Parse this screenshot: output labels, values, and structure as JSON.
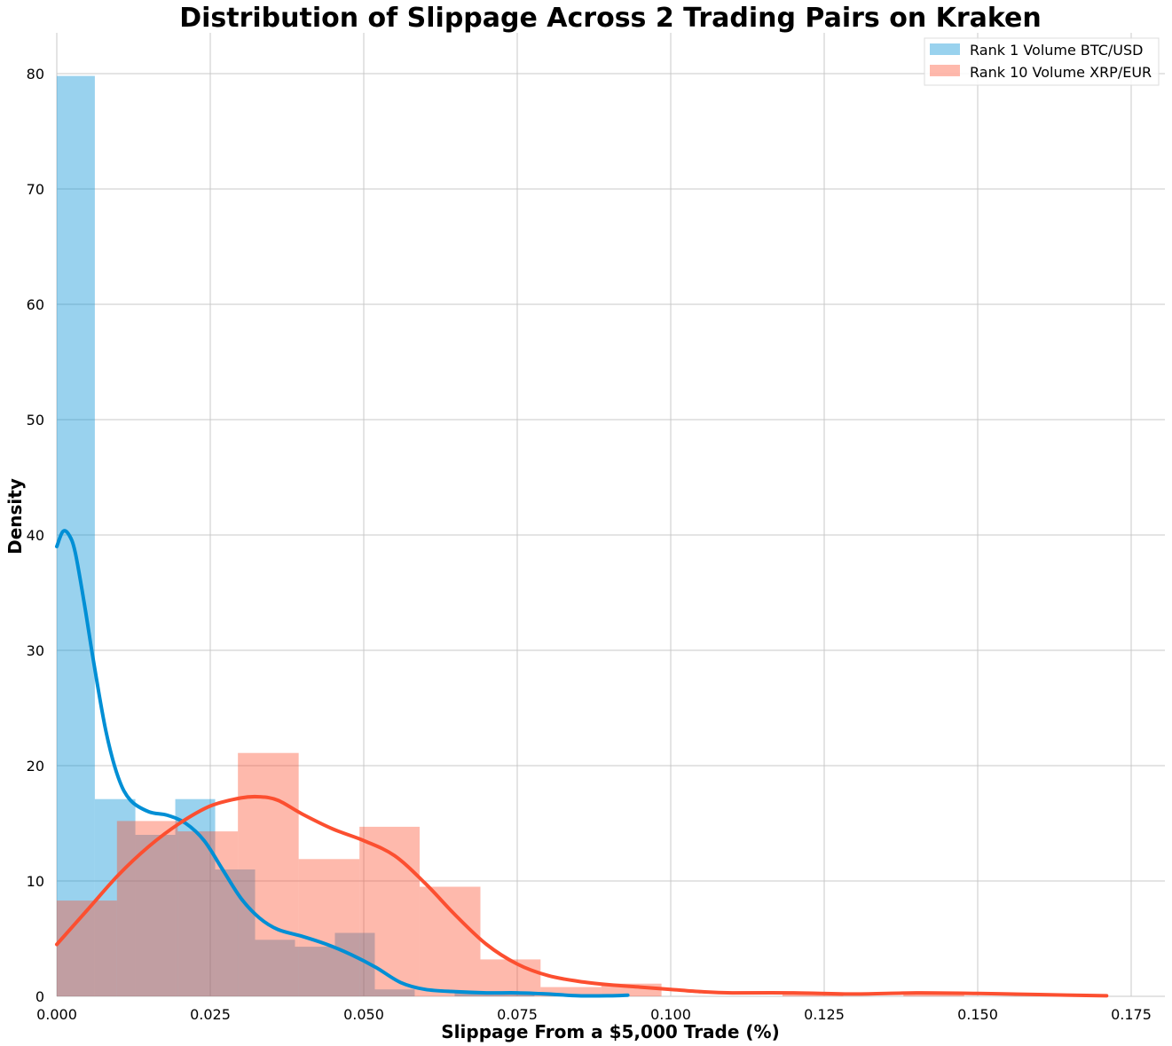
{
  "chart_data": {
    "type": "histogram",
    "title": "Distribution of Slippage Across 2 Trading Pairs on Kraken",
    "xlabel": "Slippage From a $5,000 Trade (%)",
    "ylabel": "Density",
    "xlim": [
      0,
      0.18
    ],
    "ylim": [
      0,
      83
    ],
    "xticks": [
      0.0,
      0.025,
      0.05,
      0.075,
      0.1,
      0.125,
      0.15,
      0.175
    ],
    "xtick_labels": [
      "0.000",
      "0.025",
      "0.050",
      "0.075",
      "0.100",
      "0.125",
      "0.150",
      "0.175"
    ],
    "yticks": [
      0,
      10,
      20,
      30,
      40,
      50,
      60,
      70,
      80
    ],
    "ytick_labels": [
      "0",
      "10",
      "20",
      "30",
      "40",
      "50",
      "60",
      "70",
      "80"
    ],
    "grid": true,
    "legend_position": "top-right",
    "series": [
      {
        "name": "Rank 1 Volume BTC/USD",
        "color": "#008fd5",
        "hist_alpha": 0.4,
        "bins": [
          {
            "x0": 0.0,
            "x1": 0.0062,
            "density": 79.8
          },
          {
            "x0": 0.0062,
            "x1": 0.0128,
            "density": 17.1
          },
          {
            "x0": 0.0128,
            "x1": 0.0193,
            "density": 14.0
          },
          {
            "x0": 0.0193,
            "x1": 0.0258,
            "density": 17.1
          },
          {
            "x0": 0.0258,
            "x1": 0.0323,
            "density": 11.0
          },
          {
            "x0": 0.0323,
            "x1": 0.0388,
            "density": 4.9
          },
          {
            "x0": 0.0388,
            "x1": 0.0453,
            "density": 4.3
          },
          {
            "x0": 0.0453,
            "x1": 0.0518,
            "density": 5.5
          },
          {
            "x0": 0.0518,
            "x1": 0.0583,
            "density": 0.6
          },
          {
            "x0": 0.0583,
            "x1": 0.0648,
            "density": 0.0
          },
          {
            "x0": 0.0648,
            "x1": 0.0713,
            "density": 0.3
          },
          {
            "x0": 0.0713,
            "x1": 0.0778,
            "density": 0.3
          }
        ],
        "kde": [
          [
            0.0,
            39.0
          ],
          [
            0.001,
            40.3
          ],
          [
            0.002,
            40.0
          ],
          [
            0.003,
            38.5
          ],
          [
            0.0045,
            34.0
          ],
          [
            0.006,
            29.0
          ],
          [
            0.008,
            23.0
          ],
          [
            0.01,
            19.0
          ],
          [
            0.012,
            17.0
          ],
          [
            0.015,
            16.0
          ],
          [
            0.018,
            15.7
          ],
          [
            0.021,
            15.0
          ],
          [
            0.024,
            13.5
          ],
          [
            0.027,
            11.0
          ],
          [
            0.03,
            8.5
          ],
          [
            0.033,
            6.8
          ],
          [
            0.036,
            5.8
          ],
          [
            0.04,
            5.2
          ],
          [
            0.044,
            4.5
          ],
          [
            0.048,
            3.6
          ],
          [
            0.052,
            2.5
          ],
          [
            0.056,
            1.2
          ],
          [
            0.06,
            0.6
          ],
          [
            0.065,
            0.4
          ],
          [
            0.07,
            0.3
          ],
          [
            0.075,
            0.3
          ],
          [
            0.08,
            0.2
          ],
          [
            0.085,
            0.05
          ],
          [
            0.09,
            0.05
          ],
          [
            0.093,
            0.1
          ]
        ]
      },
      {
        "name": "Rank 10 Volume XRP/EUR",
        "color": "#fc4f30",
        "hist_alpha": 0.4,
        "bins": [
          {
            "x0": 0.0,
            "x1": 0.0098,
            "density": 8.3
          },
          {
            "x0": 0.0098,
            "x1": 0.0197,
            "density": 15.2
          },
          {
            "x0": 0.0197,
            "x1": 0.0295,
            "density": 14.3
          },
          {
            "x0": 0.0295,
            "x1": 0.0394,
            "density": 21.1
          },
          {
            "x0": 0.0394,
            "x1": 0.0493,
            "density": 11.9
          },
          {
            "x0": 0.0493,
            "x1": 0.0591,
            "density": 14.7
          },
          {
            "x0": 0.0591,
            "x1": 0.069,
            "density": 9.5
          },
          {
            "x0": 0.069,
            "x1": 0.0788,
            "density": 3.2
          },
          {
            "x0": 0.0788,
            "x1": 0.0887,
            "density": 0.8
          },
          {
            "x0": 0.0887,
            "x1": 0.0985,
            "density": 1.1
          },
          {
            "x0": 0.0985,
            "x1": 0.1084,
            "density": 0.0
          },
          {
            "x0": 0.1084,
            "x1": 0.1182,
            "density": 0.0
          },
          {
            "x0": 0.1182,
            "x1": 0.1281,
            "density": 0.3
          },
          {
            "x0": 0.1281,
            "x1": 0.1379,
            "density": 0.0
          },
          {
            "x0": 0.1379,
            "x1": 0.1478,
            "density": 0.3
          }
        ],
        "kde": [
          [
            0.0,
            4.5
          ],
          [
            0.005,
            7.5
          ],
          [
            0.01,
            10.5
          ],
          [
            0.015,
            13.0
          ],
          [
            0.02,
            15.0
          ],
          [
            0.025,
            16.5
          ],
          [
            0.03,
            17.2
          ],
          [
            0.033,
            17.3
          ],
          [
            0.036,
            17.0
          ],
          [
            0.04,
            15.8
          ],
          [
            0.045,
            14.5
          ],
          [
            0.05,
            13.5
          ],
          [
            0.055,
            12.2
          ],
          [
            0.06,
            9.8
          ],
          [
            0.065,
            7.0
          ],
          [
            0.07,
            4.5
          ],
          [
            0.075,
            2.8
          ],
          [
            0.08,
            1.8
          ],
          [
            0.085,
            1.3
          ],
          [
            0.09,
            1.0
          ],
          [
            0.095,
            0.8
          ],
          [
            0.1,
            0.6
          ],
          [
            0.105,
            0.4
          ],
          [
            0.11,
            0.3
          ],
          [
            0.12,
            0.3
          ],
          [
            0.13,
            0.2
          ],
          [
            0.14,
            0.3
          ],
          [
            0.15,
            0.25
          ],
          [
            0.16,
            0.15
          ],
          [
            0.171,
            0.05
          ]
        ]
      }
    ]
  }
}
